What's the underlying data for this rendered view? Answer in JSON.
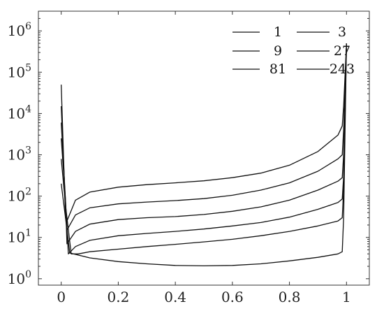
{
  "chart_data": {
    "type": "line",
    "title": "",
    "xlabel": "",
    "ylabel": "",
    "x_scale": "linear",
    "y_scale": "log",
    "xlim": [
      -0.08,
      1.08
    ],
    "ylim": [
      0.7,
      3000000
    ],
    "x_ticks": [
      {
        "value": 0,
        "label": "0"
      },
      {
        "value": 0.2,
        "label": "0.2"
      },
      {
        "value": 0.4,
        "label": "0.4"
      },
      {
        "value": 0.6,
        "label": "0.6"
      },
      {
        "value": 0.8,
        "label": "0.8"
      },
      {
        "value": 1,
        "label": "1"
      }
    ],
    "y_ticks": [
      {
        "value": 1,
        "base": "10",
        "exp": "0"
      },
      {
        "value": 10,
        "base": "10",
        "exp": "1"
      },
      {
        "value": 100,
        "base": "10",
        "exp": "2"
      },
      {
        "value": 1000,
        "base": "10",
        "exp": "3"
      },
      {
        "value": 10000,
        "base": "10",
        "exp": "4"
      },
      {
        "value": 100000,
        "base": "10",
        "exp": "5"
      },
      {
        "value": 1000000,
        "base": "10",
        "exp": "6"
      }
    ],
    "grid": false,
    "legend_position": "top-right",
    "legend_columns": 2,
    "line_color": "#111111",
    "series": [
      {
        "name": "1",
        "points": [
          [
            0,
            200
          ],
          [
            0.015,
            30
          ],
          [
            0.03,
            4.2
          ],
          [
            0.1,
            3.2
          ],
          [
            0.2,
            2.6
          ],
          [
            0.3,
            2.3
          ],
          [
            0.4,
            2.1
          ],
          [
            0.5,
            2.05
          ],
          [
            0.6,
            2.1
          ],
          [
            0.7,
            2.3
          ],
          [
            0.8,
            2.7
          ],
          [
            0.9,
            3.3
          ],
          [
            0.97,
            4
          ],
          [
            0.985,
            4.5
          ],
          [
            0.99,
            30
          ],
          [
            1,
            500000
          ]
        ]
      },
      {
        "name": "3",
        "points": [
          [
            0,
            800
          ],
          [
            0.015,
            60
          ],
          [
            0.035,
            4
          ],
          [
            0.06,
            4
          ],
          [
            0.1,
            4.5
          ],
          [
            0.2,
            5.2
          ],
          [
            0.3,
            6
          ],
          [
            0.4,
            6.8
          ],
          [
            0.5,
            7.8
          ],
          [
            0.6,
            9
          ],
          [
            0.7,
            11
          ],
          [
            0.8,
            14
          ],
          [
            0.9,
            19
          ],
          [
            0.97,
            25
          ],
          [
            0.985,
            30
          ],
          [
            0.99,
            150
          ],
          [
            1,
            500000
          ]
        ]
      },
      {
        "name": "9",
        "points": [
          [
            0,
            2500
          ],
          [
            0.015,
            80
          ],
          [
            0.025,
            4
          ],
          [
            0.05,
            6
          ],
          [
            0.1,
            8.5
          ],
          [
            0.2,
            11
          ],
          [
            0.3,
            12.5
          ],
          [
            0.4,
            14
          ],
          [
            0.5,
            16
          ],
          [
            0.6,
            19
          ],
          [
            0.7,
            23
          ],
          [
            0.8,
            31
          ],
          [
            0.9,
            48
          ],
          [
            0.97,
            70
          ],
          [
            0.985,
            85
          ],
          [
            0.99,
            300
          ],
          [
            1,
            500000
          ]
        ]
      },
      {
        "name": "27",
        "points": [
          [
            0,
            6000
          ],
          [
            0.015,
            80
          ],
          [
            0.02,
            7
          ],
          [
            0.05,
            14
          ],
          [
            0.1,
            21
          ],
          [
            0.2,
            27
          ],
          [
            0.3,
            30
          ],
          [
            0.4,
            32
          ],
          [
            0.5,
            36
          ],
          [
            0.6,
            43
          ],
          [
            0.7,
            55
          ],
          [
            0.8,
            80
          ],
          [
            0.9,
            140
          ],
          [
            0.97,
            230
          ],
          [
            0.985,
            280
          ],
          [
            0.99,
            1000
          ],
          [
            1,
            500000
          ]
        ]
      },
      {
        "name": "81",
        "points": [
          [
            0,
            15000
          ],
          [
            0.015,
            50
          ],
          [
            0.02,
            15
          ],
          [
            0.05,
            35
          ],
          [
            0.1,
            52
          ],
          [
            0.2,
            65
          ],
          [
            0.3,
            72
          ],
          [
            0.4,
            78
          ],
          [
            0.5,
            87
          ],
          [
            0.6,
            105
          ],
          [
            0.7,
            140
          ],
          [
            0.8,
            210
          ],
          [
            0.9,
            400
          ],
          [
            0.97,
            800
          ],
          [
            0.985,
            1000
          ],
          [
            0.99,
            4000
          ],
          [
            1,
            500000
          ]
        ]
      },
      {
        "name": "243",
        "points": [
          [
            0,
            50000
          ],
          [
            0.015,
            30
          ],
          [
            0.02,
            25
          ],
          [
            0.05,
            80
          ],
          [
            0.1,
            125
          ],
          [
            0.2,
            165
          ],
          [
            0.3,
            190
          ],
          [
            0.4,
            210
          ],
          [
            0.5,
            235
          ],
          [
            0.6,
            280
          ],
          [
            0.7,
            360
          ],
          [
            0.8,
            560
          ],
          [
            0.9,
            1200
          ],
          [
            0.97,
            3000
          ],
          [
            0.985,
            5000
          ],
          [
            0.99,
            15000
          ],
          [
            1,
            500000
          ]
        ]
      }
    ]
  }
}
